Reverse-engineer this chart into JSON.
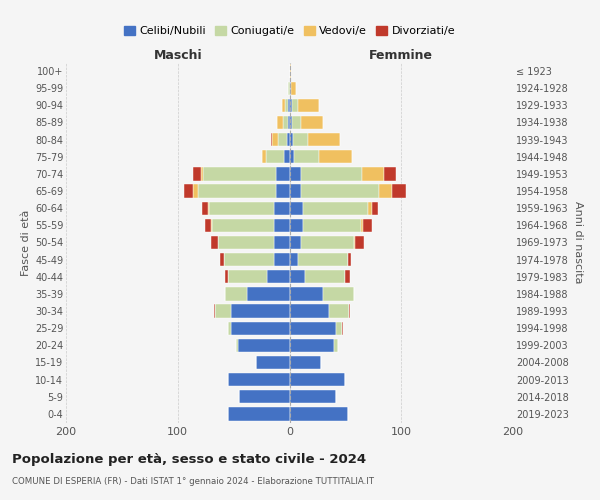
{
  "age_groups": [
    "0-4",
    "5-9",
    "10-14",
    "15-19",
    "20-24",
    "25-29",
    "30-34",
    "35-39",
    "40-44",
    "45-49",
    "50-54",
    "55-59",
    "60-64",
    "65-69",
    "70-74",
    "75-79",
    "80-84",
    "85-89",
    "90-94",
    "95-99",
    "100+"
  ],
  "birth_years": [
    "2019-2023",
    "2014-2018",
    "2009-2013",
    "2004-2008",
    "1999-2003",
    "1994-1998",
    "1989-1993",
    "1984-1988",
    "1979-1983",
    "1974-1978",
    "1969-1973",
    "1964-1968",
    "1959-1963",
    "1954-1958",
    "1949-1953",
    "1944-1948",
    "1939-1943",
    "1934-1938",
    "1929-1933",
    "1924-1928",
    "≤ 1923"
  ],
  "colors": {
    "celibi": "#4472c4",
    "coniugati": "#c5d8a4",
    "vedovi": "#f0c060",
    "divorziati": "#c0392b"
  },
  "maschi": {
    "celibi": [
      55,
      45,
      55,
      30,
      46,
      52,
      52,
      38,
      20,
      14,
      14,
      14,
      14,
      12,
      12,
      5,
      2,
      1,
      1,
      0,
      0
    ],
    "coniugati": [
      0,
      0,
      0,
      0,
      2,
      3,
      15,
      20,
      35,
      45,
      50,
      55,
      58,
      70,
      65,
      16,
      8,
      5,
      3,
      1,
      0
    ],
    "vedovi": [
      0,
      0,
      0,
      0,
      0,
      0,
      0,
      0,
      0,
      0,
      0,
      1,
      1,
      4,
      2,
      4,
      6,
      5,
      3,
      0,
      0
    ],
    "divorziati": [
      0,
      0,
      0,
      0,
      0,
      0,
      1,
      0,
      3,
      3,
      6,
      6,
      5,
      8,
      7,
      0,
      1,
      0,
      0,
      0,
      0
    ]
  },
  "femmine": {
    "celibi": [
      52,
      42,
      50,
      28,
      40,
      42,
      35,
      30,
      14,
      8,
      10,
      12,
      12,
      10,
      10,
      4,
      3,
      2,
      2,
      1,
      0
    ],
    "coniugati": [
      0,
      0,
      0,
      0,
      3,
      5,
      18,
      28,
      36,
      44,
      48,
      52,
      58,
      70,
      55,
      22,
      14,
      8,
      6,
      0,
      0
    ],
    "vedovi": [
      0,
      0,
      0,
      0,
      0,
      0,
      0,
      0,
      0,
      0,
      1,
      2,
      4,
      12,
      20,
      30,
      28,
      20,
      18,
      5,
      1
    ],
    "divorziati": [
      0,
      0,
      0,
      0,
      0,
      1,
      1,
      0,
      4,
      3,
      8,
      8,
      5,
      12,
      10,
      0,
      0,
      0,
      0,
      0,
      0
    ]
  },
  "title": "Popolazione per età, sesso e stato civile - 2024",
  "subtitle": "COMUNE DI ESPERIA (FR) - Dati ISTAT 1° gennaio 2024 - Elaborazione TUTTITALIA.IT",
  "ylabel_left": "Fasce di età",
  "ylabel_right": "Anni di nascita",
  "xlabel_maschi": "Maschi",
  "xlabel_femmine": "Femmine",
  "xlim": 200,
  "legend_labels": [
    "Celibi/Nubili",
    "Coniugati/e",
    "Vedovi/e",
    "Divorziati/e"
  ],
  "bg_color": "#f5f5f5"
}
